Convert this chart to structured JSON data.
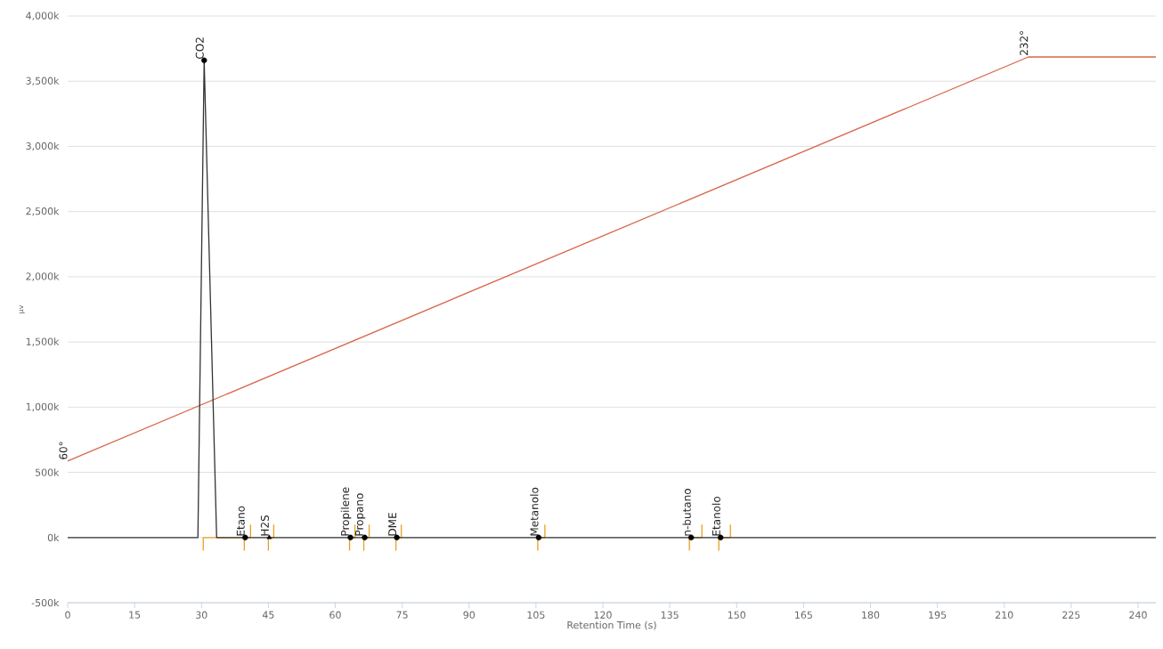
{
  "chart_data": {
    "type": "line",
    "xlabel": "Retention Time (s)",
    "ylabel": "μv",
    "xlim": [
      0,
      244
    ],
    "xticks": [
      0,
      15,
      30,
      45,
      60,
      75,
      90,
      105,
      120,
      135,
      150,
      165,
      180,
      195,
      210,
      225,
      240
    ],
    "ylim": [
      -500,
      4000
    ],
    "yticks": [
      {
        "value": -500,
        "label": "-500k"
      },
      {
        "value": 0,
        "label": "0k"
      },
      {
        "value": 500,
        "label": "500k"
      },
      {
        "value": 1000,
        "label": "1,000k"
      },
      {
        "value": 1500,
        "label": "1,500k"
      },
      {
        "value": 2000,
        "label": "2,000k"
      },
      {
        "value": 2500,
        "label": "2,500k"
      },
      {
        "value": 3000,
        "label": "3,000k"
      },
      {
        "value": 3500,
        "label": "3,500k"
      },
      {
        "value": 4000,
        "label": "4,000k"
      }
    ],
    "grid": "y",
    "series": [
      {
        "color": "#d9654b",
        "x": [
          0,
          215.4,
          244
        ],
        "values": [
          587,
          3686,
          3686
        ]
      },
      {
        "color": "#e8a020",
        "x": [
          30.4,
          30.4,
          41.0,
          41.0
        ],
        "values": [
          -100,
          0,
          0,
          100
        ]
      },
      {
        "color": "#e8a020",
        "x": [
          39.6,
          39.6
        ],
        "values": [
          -100,
          0
        ]
      },
      {
        "color": "#e8a020",
        "x": [
          45.0,
          45.0,
          46.2,
          46.2
        ],
        "values": [
          -100,
          0,
          0,
          100
        ]
      },
      {
        "color": "#e8a020",
        "x": [
          63.2,
          63.2,
          64.4,
          64.4
        ],
        "values": [
          -100,
          0,
          0,
          100
        ]
      },
      {
        "color": "#e8a020",
        "x": [
          66.4,
          66.4,
          67.6,
          67.6
        ],
        "values": [
          -100,
          0,
          0,
          100
        ]
      },
      {
        "color": "#e8a020",
        "x": [
          73.6,
          73.6,
          74.8,
          74.8
        ],
        "values": [
          -100,
          0,
          0,
          100
        ]
      },
      {
        "color": "#e8a020",
        "x": [
          105.4,
          105.4,
          107.0,
          107.0
        ],
        "values": [
          -100,
          0,
          0,
          100
        ]
      },
      {
        "color": "#e8a020",
        "x": [
          139.4,
          139.4,
          142.2,
          142.2
        ],
        "values": [
          -100,
          0,
          0,
          100
        ]
      },
      {
        "color": "#e8a020",
        "x": [
          146.0,
          146.0,
          148.6,
          148.6
        ],
        "values": [
          -100,
          0,
          0,
          100
        ]
      },
      {
        "color": "#333333",
        "x": [
          0,
          29.2,
          30.6,
          33.4,
          244
        ],
        "values": [
          0,
          0,
          3660,
          0,
          0
        ]
      },
      {
        "type": "scatter",
        "marker": "circle",
        "color": "#000000",
        "x": [
          30.6,
          39.8,
          63.4,
          66.6,
          73.8,
          105.6,
          139.8,
          146.4
        ],
        "values": [
          3660,
          0,
          0,
          0,
          0,
          0,
          0,
          0
        ]
      },
      {
        "type": "scatter",
        "marker": "triangle",
        "color": "#000000",
        "x": [
          45.2
        ],
        "values": [
          0
        ]
      }
    ],
    "annotations": [
      {
        "text": "CO2",
        "x": 30.6,
        "y": 3660
      },
      {
        "text": "Etano",
        "x": 39.8,
        "y": 0
      },
      {
        "text": "H2S",
        "x": 45.2,
        "y": 0
      },
      {
        "text": "Propilene",
        "x": 63.4,
        "y": 0
      },
      {
        "text": "Propano",
        "x": 66.6,
        "y": 0
      },
      {
        "text": "DME",
        "x": 73.8,
        "y": 0
      },
      {
        "text": "Metanolo",
        "x": 105.6,
        "y": 0
      },
      {
        "text": "n-butano",
        "x": 139.8,
        "y": 0
      },
      {
        "text": "Etanolo",
        "x": 146.4,
        "y": 0
      },
      {
        "text": "60°",
        "x": 0,
        "y": 587
      },
      {
        "text": "232°",
        "x": 215.4,
        "y": 3686
      }
    ]
  }
}
